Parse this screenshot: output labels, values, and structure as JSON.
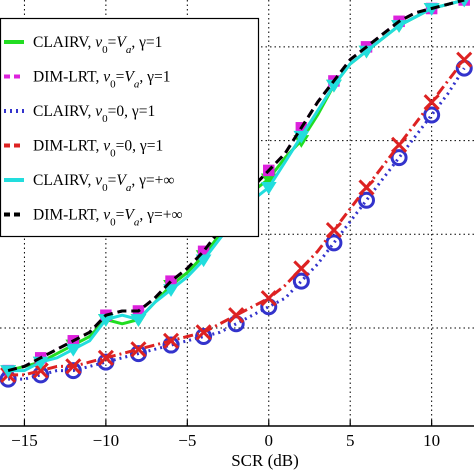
{
  "chart_data": {
    "type": "line",
    "xlabel": "SCR (dB)",
    "ylabel": "",
    "title": "",
    "xlim": [
      -16.5,
      12.6
    ],
    "ylim": [
      0,
      1.0
    ],
    "x_ticks": [
      -15,
      -10,
      -5,
      0,
      5,
      10
    ],
    "x_tick_labels": [
      "−15",
      "−10",
      "−5",
      "0",
      "5",
      "10"
    ],
    "grid": true,
    "grid_style": "dotted",
    "legend_position": "top-left",
    "x": [
      -16,
      -15,
      -14,
      -13,
      -12,
      -11,
      -10,
      -9,
      -8,
      -7,
      -6,
      -5,
      -4,
      -3,
      -2,
      -1,
      0,
      1,
      2,
      3,
      4,
      5,
      6,
      7,
      8,
      9,
      10,
      11,
      12
    ],
    "series": [
      {
        "name_parts": [
          "CLAIRV, ",
          "v",
          "0",
          "=",
          "V",
          "a",
          ", γ=1"
        ],
        "color": "#22dd22",
        "dash": "solid",
        "marker": "triangle-down",
        "values": [
          0.13,
          0.14,
          0.15,
          0.17,
          0.19,
          0.21,
          0.25,
          0.24,
          0.25,
          0.29,
          0.33,
          0.36,
          0.4,
          0.45,
          0.49,
          0.55,
          0.58,
          0.63,
          0.67,
          0.73,
          0.8,
          0.85,
          0.88,
          0.91,
          0.94,
          0.96,
          0.98,
          0.99,
          1.0
        ]
      },
      {
        "name_parts": [
          "DIM-LRT, ",
          "v",
          "0",
          "=",
          "V",
          "a",
          ", γ=1"
        ],
        "color": "#dd22dd",
        "dash": "dashed",
        "marker": "square",
        "values": [
          0.13,
          0.14,
          0.16,
          0.18,
          0.2,
          0.22,
          0.26,
          0.27,
          0.27,
          0.3,
          0.34,
          0.37,
          0.41,
          0.46,
          0.51,
          0.56,
          0.6,
          0.64,
          0.7,
          0.76,
          0.81,
          0.86,
          0.89,
          0.92,
          0.95,
          0.97,
          0.98,
          0.99,
          1.0
        ]
      },
      {
        "name_parts": [
          "CLAIRV, ",
          "v",
          "0",
          "=0, γ=1"
        ],
        "color": "#3333cc",
        "dash": "dotted",
        "marker": "circle",
        "values": [
          0.11,
          0.11,
          0.12,
          0.13,
          0.13,
          0.14,
          0.15,
          0.16,
          0.17,
          0.18,
          0.19,
          0.2,
          0.21,
          0.22,
          0.24,
          0.26,
          0.28,
          0.3,
          0.34,
          0.38,
          0.43,
          0.48,
          0.53,
          0.58,
          0.63,
          0.68,
          0.73,
          0.78,
          0.84
        ]
      },
      {
        "name_parts": [
          "DIM-LRT, ",
          "v",
          "0",
          "=0, γ=1"
        ],
        "color": "#dd2222",
        "dash": "dashdot",
        "marker": "x",
        "values": [
          0.12,
          0.12,
          0.13,
          0.14,
          0.14,
          0.15,
          0.16,
          0.17,
          0.18,
          0.19,
          0.2,
          0.21,
          0.22,
          0.24,
          0.26,
          0.28,
          0.3,
          0.33,
          0.37,
          0.41,
          0.46,
          0.51,
          0.56,
          0.61,
          0.66,
          0.71,
          0.76,
          0.81,
          0.86
        ]
      },
      {
        "name_parts": [
          "CLAIRV, ",
          "v",
          "0",
          "=",
          "V",
          "a",
          ", γ=+∞"
        ],
        "color": "#22dddd",
        "dash": "solid",
        "marker": "triangle-down",
        "values": [
          0.13,
          0.13,
          0.15,
          0.16,
          0.18,
          0.2,
          0.25,
          0.26,
          0.25,
          0.29,
          0.32,
          0.35,
          0.39,
          0.44,
          0.49,
          0.53,
          0.56,
          0.62,
          0.68,
          0.74,
          0.8,
          0.85,
          0.88,
          0.91,
          0.94,
          0.96,
          0.98,
          0.99,
          1.0
        ]
      },
      {
        "name_parts": [
          "DIM-LRT, ",
          "v",
          "0",
          "=",
          "V",
          "a",
          ", γ=+∞"
        ],
        "color": "#000000",
        "dash": "dashed",
        "marker": "none",
        "values": [
          0.13,
          0.14,
          0.16,
          0.18,
          0.2,
          0.22,
          0.26,
          0.27,
          0.27,
          0.3,
          0.34,
          0.37,
          0.41,
          0.46,
          0.51,
          0.56,
          0.6,
          0.64,
          0.7,
          0.76,
          0.81,
          0.86,
          0.89,
          0.92,
          0.95,
          0.97,
          0.98,
          0.99,
          1.0
        ]
      }
    ]
  }
}
